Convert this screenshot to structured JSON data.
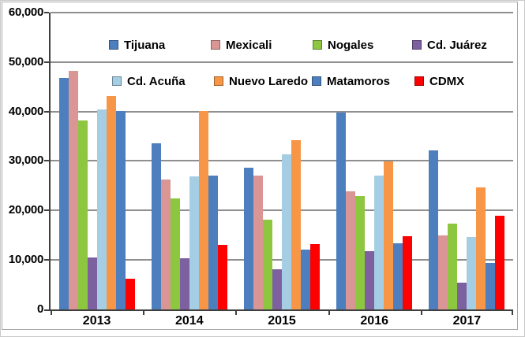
{
  "chart_data": {
    "type": "bar",
    "title": "",
    "xlabel": "",
    "ylabel": "",
    "categories": [
      "2013",
      "2014",
      "2015",
      "2016",
      "2017"
    ],
    "series": [
      {
        "name": "Tijuana",
        "color": "#4d7ebd",
        "values": [
          46800,
          33600,
          28700,
          39800,
          32200
        ]
      },
      {
        "name": "Mexicali",
        "color": "#d99694",
        "values": [
          48300,
          26200,
          27100,
          23800,
          15000
        ]
      },
      {
        "name": "Nogales",
        "color": "#8dc63f",
        "values": [
          38200,
          22400,
          18100,
          22900,
          17400
        ]
      },
      {
        "name": "Cd. Juárez",
        "color": "#7d60a0",
        "values": [
          10500,
          10300,
          8100,
          11700,
          5400
        ]
      },
      {
        "name": "Cd. Acuña",
        "color": "#a5cee4",
        "values": [
          40400,
          26900,
          31300,
          27000,
          14600
        ]
      },
      {
        "name": "Nuevo Laredo",
        "color": "#f79646",
        "values": [
          43100,
          40100,
          34200,
          29900,
          24700
        ]
      },
      {
        "name": "Matamoros",
        "color": "#4d7ebd",
        "values": [
          40100,
          27100,
          12100,
          13300,
          9400
        ]
      },
      {
        "name": "CDMX",
        "color": "#fe0000",
        "values": [
          6200,
          13000,
          13200,
          14800,
          19000
        ]
      }
    ],
    "ylim": [
      0,
      60000
    ],
    "ytick_interval": 10000,
    "ytick_labels": [
      "0",
      "10,000",
      "20,000",
      "30,000",
      "40,000",
      "50,000",
      "60,000"
    ],
    "grid": true,
    "legend_position": "top-inside-two-rows",
    "legend_rows": [
      [
        "Tijuana",
        "Mexicali",
        "Nogales",
        "Cd. Juárez"
      ],
      [
        "Cd. Acuña",
        "Nuevo Laredo",
        "Matamoros",
        "CDMX"
      ]
    ]
  },
  "colors": {
    "axis": "#3f3f3f",
    "gridline": "#8f8f8f",
    "frame_border": "#a9a9a9",
    "background": "#ffffff",
    "text": "#000000"
  }
}
